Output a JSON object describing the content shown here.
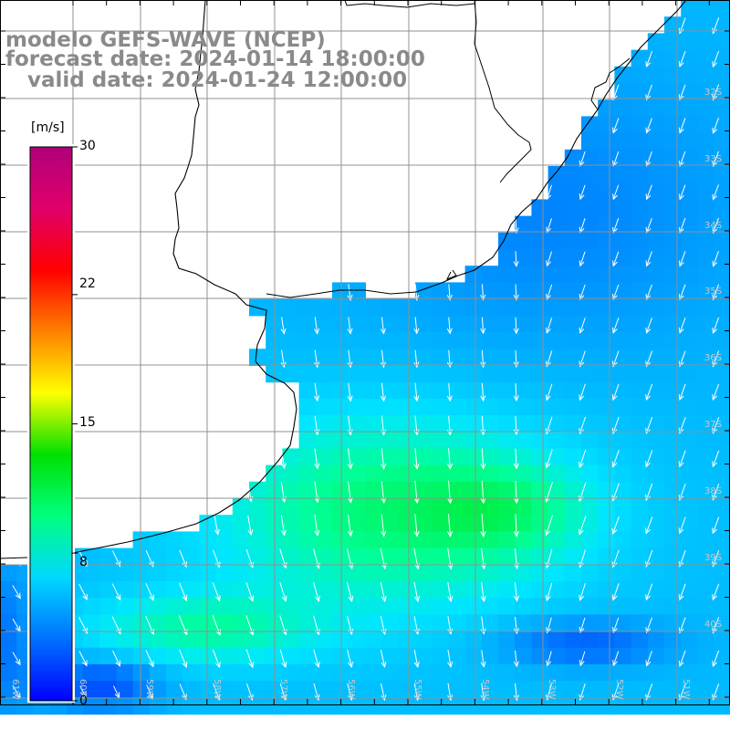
{
  "title": {
    "line1": "modelo GEFS-WAVE (NCEP)",
    "line2": "forecast date: 2024-01-14 18:00:00",
    "line3": "   valid date: 2024-01-24 12:00:00"
  },
  "colorbar": {
    "unit": "[m/s]",
    "min": 0,
    "max": 30,
    "ticks": [
      "30",
      "22",
      "15",
      "8",
      "0"
    ],
    "tick_values": [
      30,
      22,
      15,
      8,
      0
    ],
    "colors": [
      "#0000ff",
      "#0070ff",
      "#00d8ff",
      "#00ff80",
      "#00e000",
      "#ffff00",
      "#ff8000",
      "#ff0000",
      "#e0006a",
      "#b0007a"
    ]
  },
  "map": {
    "variable": "wind speed and direction",
    "land_color": "#ffffff",
    "grid_color": "#909090",
    "latitude_labels": [
      "32S",
      "33S",
      "34S",
      "35S",
      "36S",
      "37S",
      "38S",
      "39S",
      "40S"
    ],
    "longitude_labels": [
      "61W",
      "60W",
      "59W",
      "58W",
      "57W",
      "56W",
      "55W",
      "54W",
      "53W",
      "52W",
      "51W"
    ]
  }
}
